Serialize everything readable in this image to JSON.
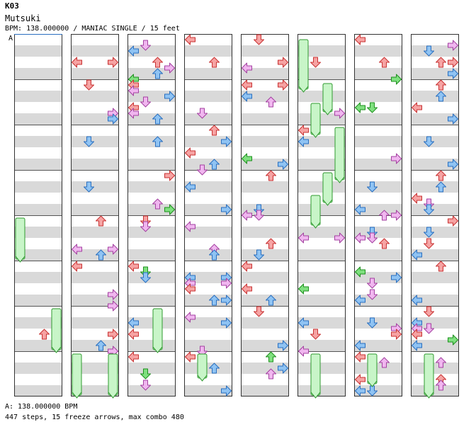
{
  "header": {
    "id": "K03",
    "title": "Mutsuki",
    "meta": "BPM: 138.000000 / MANIAC SINGLE / 15 feet"
  },
  "section_marker": "A",
  "footer": {
    "bpm_line": "A: 138.000000 BPM",
    "stats_line": "447 steps, 15 freeze arrows, max combo 480"
  },
  "colors": {
    "quarter": "#f6a3a3",
    "quarter_stroke": "#c83232",
    "eighth": "#8fc3f3",
    "eighth_stroke": "#2a6fbf",
    "sixteenth": "#f0b6ef",
    "sixteenth_stroke": "#a341a0",
    "other": "#7fe07f",
    "other_stroke": "#1e8f1e",
    "freeze_fill": "#c8f5c8",
    "freeze_stroke": "#2f9a2f",
    "band": "#d9d9d9"
  },
  "step_icons": [
    "left-arrow-icon",
    "down-arrow-icon",
    "up-arrow-icon",
    "right-arrow-icon"
  ]
}
